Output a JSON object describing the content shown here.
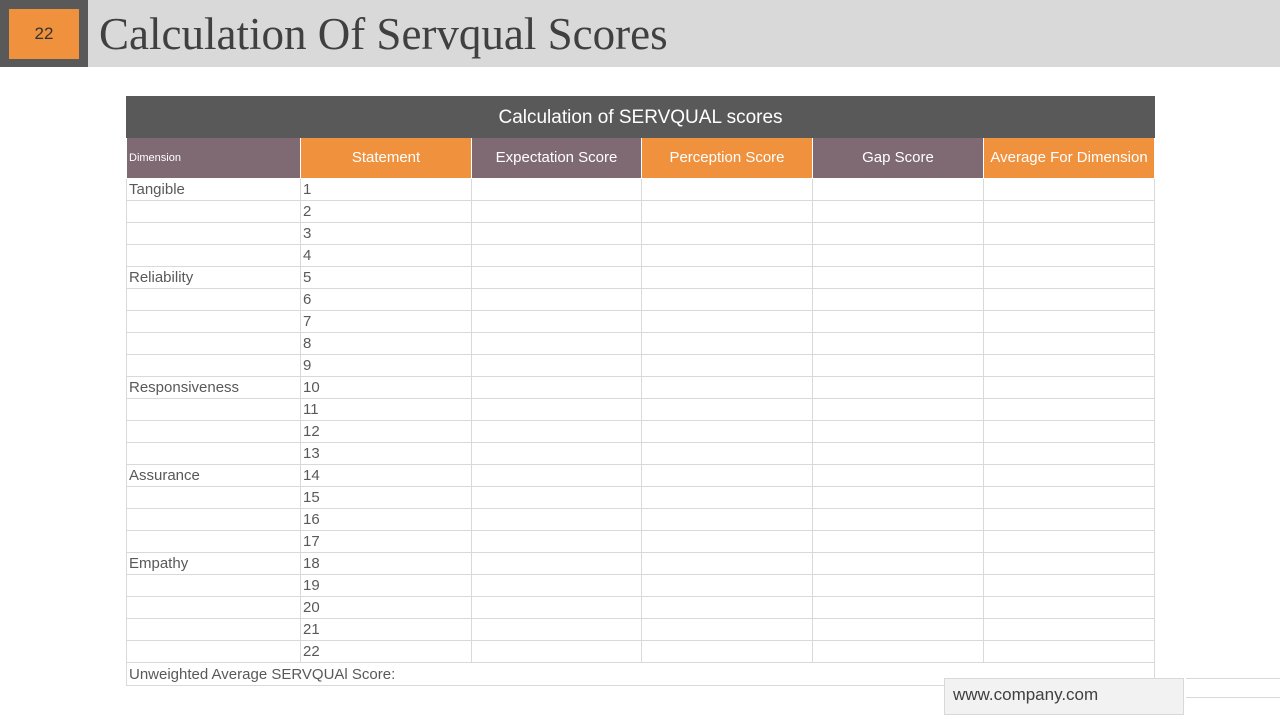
{
  "slide_number": "22",
  "title": "Calculation Of Servqual Scores",
  "table": {
    "caption": "Calculation of SERVQUAL  scores",
    "headers": [
      "Dimension",
      "Statement",
      "Expectation Score",
      "Perception Score",
      "Gap Score",
      "Average For Dimension"
    ],
    "rows": [
      {
        "dimension": "Tangible",
        "statement": "1"
      },
      {
        "dimension": "",
        "statement": "2"
      },
      {
        "dimension": "",
        "statement": "3"
      },
      {
        "dimension": "",
        "statement": "4"
      },
      {
        "dimension": "Reliability",
        "statement": "5"
      },
      {
        "dimension": "",
        "statement": "6"
      },
      {
        "dimension": "",
        "statement": "7"
      },
      {
        "dimension": "",
        "statement": "8"
      },
      {
        "dimension": "",
        "statement": "9"
      },
      {
        "dimension": "Responsiveness",
        "statement": "10"
      },
      {
        "dimension": "",
        "statement": "11"
      },
      {
        "dimension": "",
        "statement": "12"
      },
      {
        "dimension": "",
        "statement": "13"
      },
      {
        "dimension": "Assurance",
        "statement": "14"
      },
      {
        "dimension": "",
        "statement": "15"
      },
      {
        "dimension": "",
        "statement": "16"
      },
      {
        "dimension": "",
        "statement": "17"
      },
      {
        "dimension": "Empathy",
        "statement": "18"
      },
      {
        "dimension": "",
        "statement": "19"
      },
      {
        "dimension": "",
        "statement": "20"
      },
      {
        "dimension": "",
        "statement": "21"
      },
      {
        "dimension": "",
        "statement": "22"
      }
    ],
    "footer": "Unweighted  Average SERVQUAl Score:"
  },
  "footer_url": "www.company.com",
  "colors": {
    "accent_orange": "#f0913d",
    "header_mauve": "#7f6a73",
    "caption_dark": "#595959",
    "title_bar": "#d9d9d9"
  }
}
